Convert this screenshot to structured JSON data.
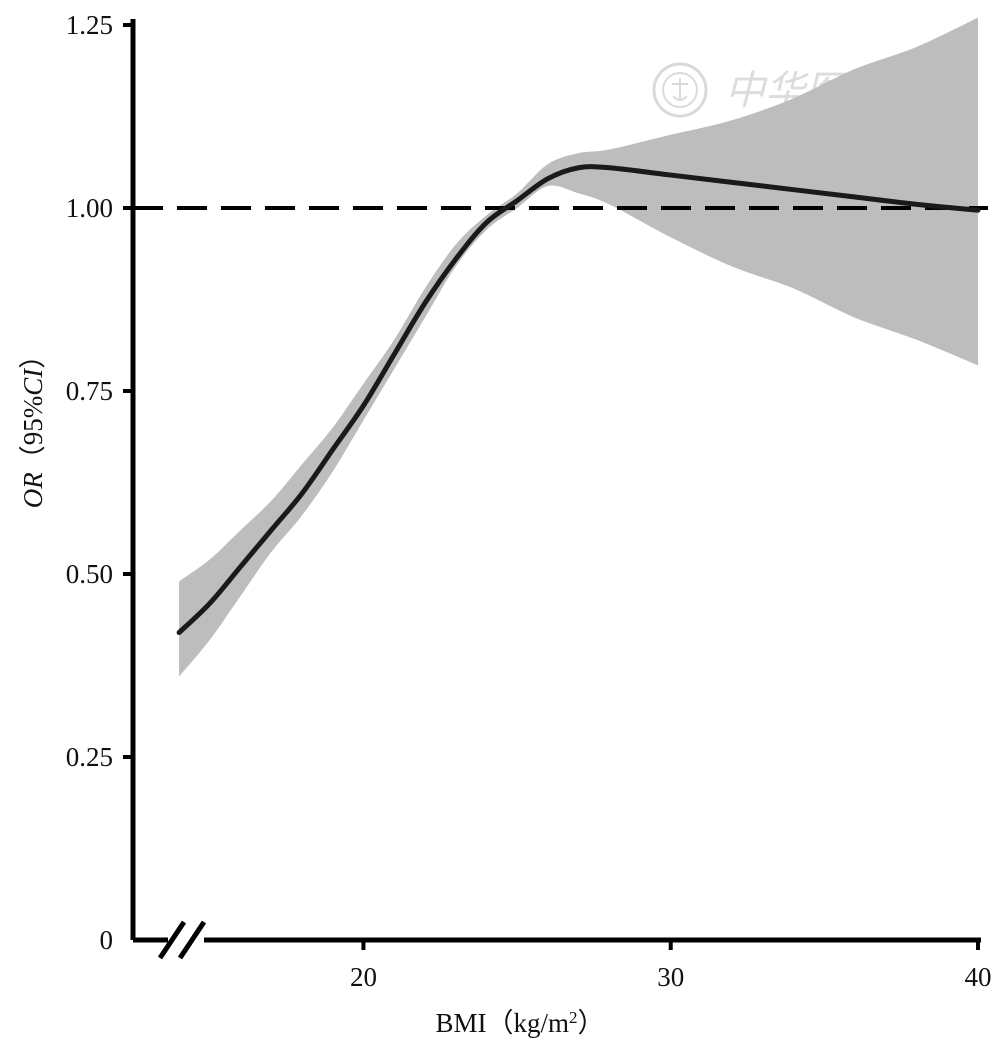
{
  "chart_data": {
    "type": "line",
    "title": "",
    "x_axis": {
      "label_prefix": "BMI（kg/m",
      "label_sup": "2",
      "label_suffix": "）",
      "range": [
        12.5,
        40
      ],
      "ticks": [
        20,
        30,
        40
      ],
      "tick_labels": [
        "20",
        "30",
        "40"
      ],
      "axis_break": true
    },
    "y_axis": {
      "label_italic_1": "OR",
      "label_mid": "（95%",
      "label_italic_2": "CI",
      "label_end": "）",
      "range": [
        0,
        1.25
      ],
      "ticks": [
        0,
        0.25,
        0.5,
        0.75,
        1.0,
        1.25
      ],
      "tick_labels": [
        "0",
        "0.25",
        "0.50",
        "0.75",
        "1.00",
        "1.25"
      ]
    },
    "reference_line": {
      "y": 1.0,
      "style": "dashed"
    },
    "series": [
      {
        "x": [
          14,
          15,
          16,
          17,
          18,
          19,
          20,
          21,
          22,
          23,
          24,
          25,
          26,
          27,
          28,
          30,
          32,
          34,
          36,
          38,
          40
        ],
        "y": [
          0.42,
          0.46,
          0.51,
          0.56,
          0.61,
          0.67,
          0.73,
          0.8,
          0.87,
          0.93,
          0.98,
          1.01,
          1.04,
          1.055,
          1.055,
          1.045,
          1.035,
          1.025,
          1.015,
          1.005,
          0.997
        ],
        "lower": [
          0.36,
          0.41,
          0.47,
          0.53,
          0.58,
          0.64,
          0.71,
          0.78,
          0.85,
          0.92,
          0.97,
          1.0,
          1.03,
          1.02,
          1.005,
          0.96,
          0.92,
          0.89,
          0.85,
          0.82,
          0.785
        ],
        "upper": [
          0.49,
          0.52,
          0.56,
          0.6,
          0.65,
          0.7,
          0.76,
          0.82,
          0.89,
          0.95,
          0.99,
          1.02,
          1.06,
          1.075,
          1.08,
          1.1,
          1.12,
          1.15,
          1.19,
          1.22,
          1.26
        ]
      }
    ],
    "colors": {
      "line": "#1a1a1a",
      "ci_band": "#bdbdbd",
      "axis": "#000000"
    },
    "grid": false,
    "legend": "none"
  },
  "watermark": {
    "text": "中华医学会",
    "seal": "seal-icon"
  }
}
